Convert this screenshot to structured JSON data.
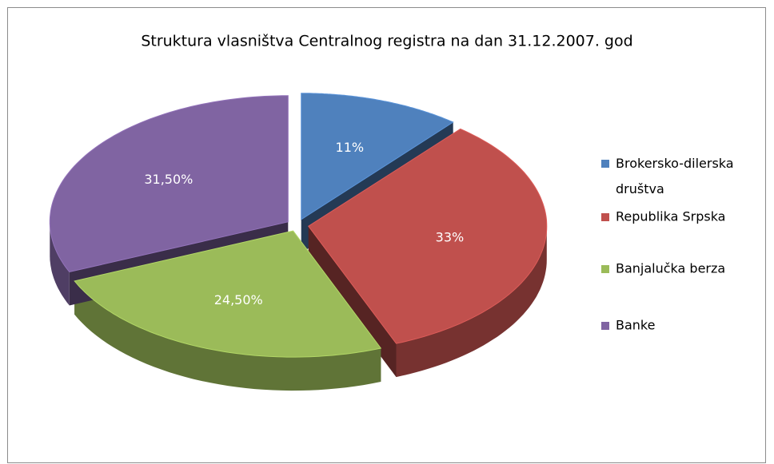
{
  "chart_data": {
    "type": "pie",
    "title": "Struktura vlasništva Centralnog registra na dan 31.12.2007. god",
    "categories": [
      "Brokersko-dilerska društva",
      "Republika Srpska",
      "Banjalučka berza",
      "Banke"
    ],
    "values": [
      11,
      33,
      24.5,
      31.5
    ],
    "value_labels": [
      "11%",
      "33%",
      "24,50%",
      "31,50%"
    ],
    "colors": [
      "#4f81bd",
      "#c0504d",
      "#9bbb59",
      "#8064a2"
    ],
    "legend": "right"
  }
}
